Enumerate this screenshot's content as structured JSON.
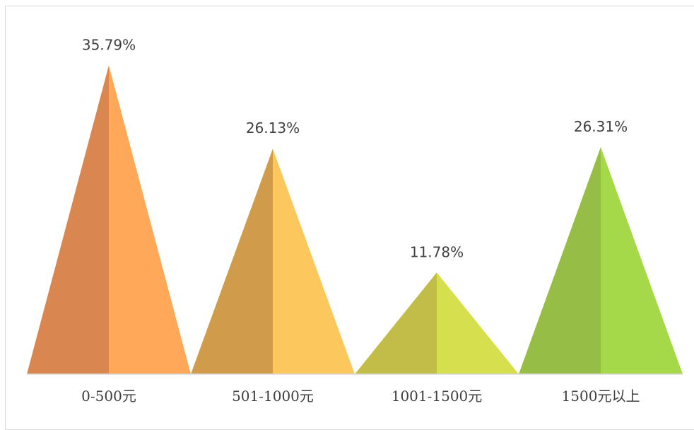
{
  "chart_data": {
    "type": "bar",
    "style": "triangle",
    "categories": [
      "0-500元",
      "501-1000元",
      "1001-1500元",
      "1500元以上"
    ],
    "values": [
      35.79,
      26.13,
      11.78,
      26.31
    ],
    "value_labels": [
      "35.79%",
      "26.13%",
      "11.78%",
      "26.31%"
    ],
    "unit": "%",
    "title": "",
    "xlabel": "",
    "ylabel": "",
    "ylim": [
      0,
      40
    ],
    "grid": false,
    "legend": "none",
    "colors": [
      {
        "dark": "#D98651",
        "light": "#FFA85A"
      },
      {
        "dark": "#D09B4A",
        "light": "#FCC85E"
      },
      {
        "dark": "#C2BC48",
        "light": "#D6E04E"
      },
      {
        "dark": "#96BD45",
        "light": "#A5D94A"
      }
    ],
    "axis_color": "#D9D9D9"
  }
}
